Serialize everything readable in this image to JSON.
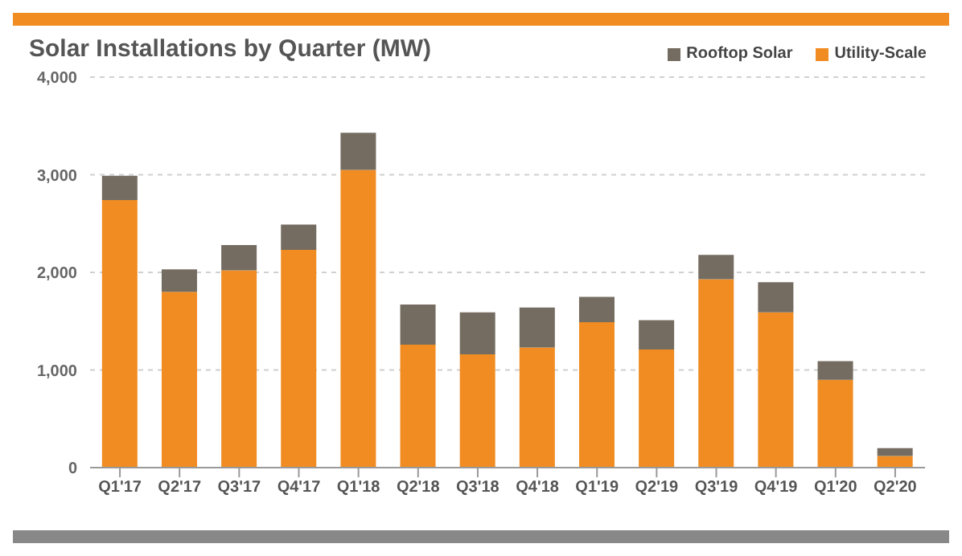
{
  "chart_data": {
    "type": "bar",
    "title": "Solar Installations by Quarter (MW)",
    "categories": [
      "Q1'17",
      "Q2'17",
      "Q3'17",
      "Q4'17",
      "Q1'18",
      "Q2'18",
      "Q3'18",
      "Q4'18",
      "Q1'19",
      "Q2'19",
      "Q3'19",
      "Q4'19",
      "Q1'20",
      "Q2'20"
    ],
    "series": [
      {
        "name": "Utility-Scale",
        "color": "#f08c22",
        "values": [
          2740,
          1800,
          2020,
          2230,
          3050,
          1260,
          1160,
          1230,
          1490,
          1210,
          1930,
          1590,
          900,
          120
        ]
      },
      {
        "name": "Rooftop Solar",
        "color": "#756c61",
        "values": [
          250,
          230,
          260,
          260,
          380,
          410,
          430,
          410,
          260,
          300,
          250,
          310,
          190,
          80
        ]
      }
    ],
    "stacked": true,
    "ylim": [
      0,
      4000
    ],
    "yticks": [
      {
        "value": 0,
        "label": "0"
      },
      {
        "value": 1000,
        "label": "1,000"
      },
      {
        "value": 2000,
        "label": "2,000"
      },
      {
        "value": 3000,
        "label": "3,000"
      },
      {
        "value": 4000,
        "label": "4,000"
      }
    ],
    "grid": "y",
    "legend": "top right"
  }
}
